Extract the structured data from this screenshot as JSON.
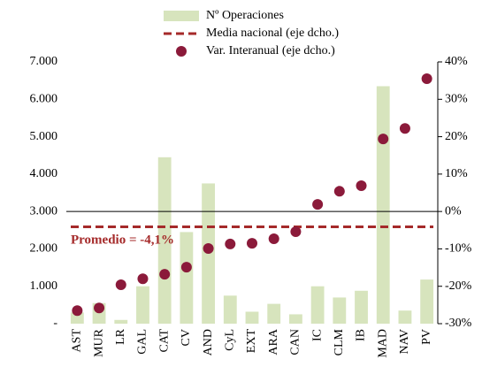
{
  "chart_data": {
    "type": "combo",
    "categories": [
      "AST",
      "MUR",
      "LR",
      "GAL",
      "CAT",
      "CV",
      "AND",
      "CyL",
      "EXT",
      "ARA",
      "CAN",
      "IC",
      "CLM",
      "IB",
      "MAD",
      "NAV",
      "PV"
    ],
    "series": [
      {
        "name": "Nº Operaciones",
        "type": "bar",
        "color": "#d7e4bd",
        "values": [
          300,
          550,
          100,
          1000,
          4450,
          2450,
          3750,
          750,
          320,
          530,
          250,
          1000,
          700,
          880,
          6350,
          350,
          1180
        ]
      },
      {
        "name": "Media nacional (eje dcho.)",
        "type": "line",
        "axis": "y2",
        "color": "#a52a2a",
        "values": [
          -4.1,
          -4.1,
          -4.1,
          -4.1,
          -4.1,
          -4.1,
          -4.1,
          -4.1,
          -4.1,
          -4.1,
          -4.1,
          -4.1,
          -4.1,
          -4.1,
          -4.1,
          -4.1,
          -4.1
        ]
      },
      {
        "name": "Var. Interanual (eje dcho.)",
        "type": "scatter",
        "axis": "y2",
        "color": "#8b1a3a",
        "values": [
          -26.5,
          -25.8,
          -19.6,
          -18.0,
          -16.8,
          -14.9,
          -9.9,
          -8.7,
          -8.5,
          -7.3,
          -5.4,
          1.9,
          5.4,
          6.9,
          19.4,
          22.2,
          35.5
        ]
      }
    ],
    "annotation": "Promedio = -4,1%",
    "ylim": [
      0,
      7000
    ],
    "yticks": [
      {
        "value": 0,
        "label": "-"
      },
      {
        "value": 1000,
        "label": "1.000"
      },
      {
        "value": 2000,
        "label": "2.000"
      },
      {
        "value": 3000,
        "label": "3.000"
      },
      {
        "value": 4000,
        "label": "4.000"
      },
      {
        "value": 5000,
        "label": "5.000"
      },
      {
        "value": 6000,
        "label": "6.000"
      },
      {
        "value": 7000,
        "label": "7.000"
      }
    ],
    "y2lim": [
      -30,
      40
    ],
    "y2ticks": [
      {
        "value": -30,
        "label": "-30%"
      },
      {
        "value": -20,
        "label": "-20%"
      },
      {
        "value": -10,
        "label": "-10%"
      },
      {
        "value": 0,
        "label": "0%"
      },
      {
        "value": 10,
        "label": "10%"
      },
      {
        "value": 20,
        "label": "20%"
      },
      {
        "value": 30,
        "label": "30%"
      },
      {
        "value": 40,
        "label": "40%"
      }
    ]
  }
}
